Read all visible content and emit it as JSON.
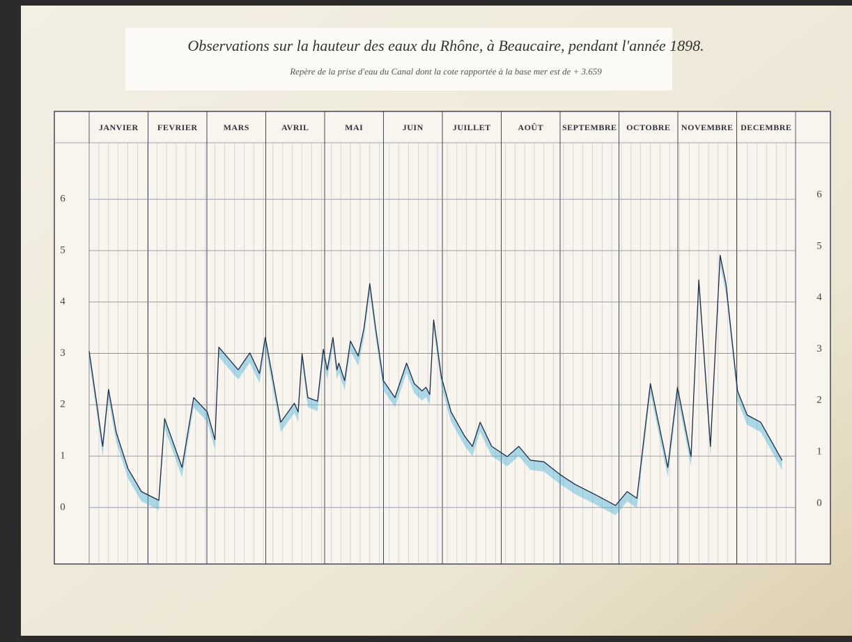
{
  "chart_data": {
    "type": "line",
    "title": "Observations sur la hauteur des eaux du Rhône, à Beaucaire, pendant l'année 1898.",
    "subtitle": "Repère de la prise d'eau du Canal dont la cote rapportée à la base mer est de + 3.659",
    "categories": [
      "JANVIER",
      "FEVRIER",
      "MARS",
      "AVRIL",
      "MAI",
      "JUIN",
      "JUILLET",
      "AOÛT",
      "SEPTEMBRE",
      "OCTOBRE",
      "NOVEMBRE",
      "DECEMBRE"
    ],
    "x": [
      1,
      5,
      8,
      11,
      15,
      21,
      28,
      37,
      40,
      49,
      55,
      62,
      66,
      68,
      78,
      84,
      89,
      92,
      100,
      107,
      109,
      111,
      114,
      119,
      122,
      124,
      127,
      129,
      130,
      133,
      136,
      140,
      143,
      146,
      149,
      153,
      159,
      165,
      169,
      173,
      175,
      177,
      179,
      183,
      188,
      195,
      199,
      203,
      209,
      217,
      223,
      229,
      236,
      244,
      252,
      263,
      273,
      279,
      284,
      291,
      300,
      305,
      312,
      316,
      322,
      327,
      330,
      336,
      341,
      348,
      359
    ],
    "values": [
      3.04,
      2.0,
      1.19,
      2.3,
      1.46,
      0.76,
      0.31,
      0.14,
      1.73,
      0.78,
      2.14,
      1.86,
      1.32,
      3.12,
      2.68,
      3.01,
      2.61,
      3.31,
      1.66,
      2.03,
      1.86,
      2.99,
      2.14,
      2.07,
      3.08,
      2.68,
      3.31,
      2.68,
      2.81,
      2.47,
      3.24,
      2.95,
      3.49,
      4.36,
      3.49,
      2.47,
      2.14,
      2.81,
      2.41,
      2.27,
      2.34,
      2.2,
      3.65,
      2.54,
      1.86,
      1.39,
      1.19,
      1.66,
      1.19,
      0.99,
      1.19,
      0.92,
      0.89,
      0.65,
      0.45,
      0.24,
      0.04,
      0.31,
      0.18,
      2.41,
      0.78,
      2.34,
      0.99,
      4.43,
      1.19,
      4.91,
      4.36,
      2.27,
      1.8,
      1.66,
      0.92
    ],
    "color": "#1f2a44",
    "fill_color": "#4fb3d9",
    "xlim": [
      1,
      366
    ],
    "ylim": [
      -1.1,
      7.1
    ],
    "yticks": [
      0,
      1,
      2,
      3,
      4,
      5,
      6
    ],
    "grid": true
  }
}
